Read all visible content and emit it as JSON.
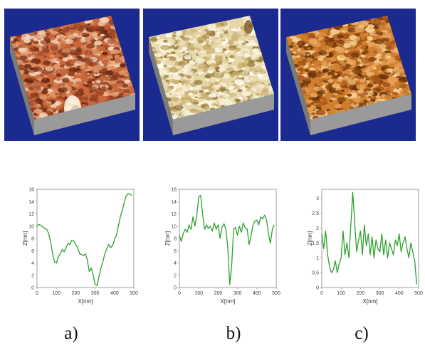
{
  "figure": {
    "panels": [
      {
        "caption": "a)",
        "surface_palette": [
          "#6e2a14",
          "#9b4526",
          "#c8683c",
          "#e29a6a",
          "#f4d7b9"
        ]
      },
      {
        "caption": "b)",
        "surface_palette": [
          "#9a7d3c",
          "#c8ae6e",
          "#e7d7a8",
          "#f6efd4",
          "#fffdf3"
        ]
      },
      {
        "caption": "c)",
        "surface_palette": [
          "#6d3208",
          "#a35419",
          "#d07f2f",
          "#e9a55a",
          "#f8d394"
        ]
      }
    ],
    "background_color": "#1b2a8f",
    "base_color": "#8b8b8b",
    "line_color": "#2ca02c"
  },
  "chart_data": [
    {
      "type": "line",
      "xlabel": "X[nm]",
      "ylabel": "Z[nm]",
      "xlim": [
        0,
        500
      ],
      "ylim": [
        0,
        16
      ],
      "xticks": [
        0,
        100,
        200,
        300,
        400,
        500
      ],
      "yticks": [
        0,
        2,
        4,
        6,
        8,
        10,
        12,
        14,
        16
      ],
      "x": [
        0,
        10,
        20,
        30,
        40,
        50,
        60,
        70,
        80,
        90,
        100,
        110,
        120,
        130,
        140,
        150,
        160,
        170,
        180,
        190,
        200,
        210,
        220,
        230,
        240,
        250,
        260,
        270,
        280,
        290,
        300,
        310,
        320,
        330,
        340,
        350,
        360,
        370,
        380,
        390,
        400,
        410,
        420,
        430,
        440,
        450,
        460,
        470,
        480,
        490
      ],
      "y": [
        10,
        10.3,
        10.1,
        9.9,
        9.6,
        9.5,
        8.8,
        7.5,
        5.6,
        4.2,
        4.0,
        5.0,
        5.5,
        6.2,
        5.8,
        6.5,
        7.2,
        7.0,
        7.7,
        7.6,
        7.0,
        6.5,
        5.5,
        5.4,
        5.2,
        5.5,
        4.5,
        2.6,
        3.2,
        2.0,
        0.5,
        0.3,
        1.8,
        3.2,
        4.2,
        5.5,
        6.3,
        7.0,
        6.5,
        6.8,
        7.8,
        8.5,
        10.0,
        11.5,
        12.5,
        13.8,
        14.9,
        15.3,
        15.2,
        15.0
      ]
    },
    {
      "type": "line",
      "xlabel": "X[nm]",
      "ylabel": "Z[nm]",
      "xlim": [
        0,
        500
      ],
      "ylim": [
        0,
        16
      ],
      "xticks": [
        0,
        100,
        200,
        300,
        400,
        500
      ],
      "yticks": [
        0,
        2,
        4,
        6,
        8,
        10,
        12,
        14,
        16
      ],
      "x": [
        0,
        10,
        20,
        30,
        40,
        50,
        60,
        70,
        80,
        90,
        100,
        110,
        120,
        130,
        140,
        150,
        160,
        170,
        180,
        190,
        200,
        210,
        220,
        230,
        240,
        250,
        260,
        270,
        280,
        290,
        300,
        310,
        320,
        330,
        340,
        350,
        360,
        370,
        380,
        390,
        400,
        410,
        420,
        430,
        440,
        450,
        460,
        470,
        480,
        490
      ],
      "y": [
        8.5,
        7.5,
        8.8,
        9.5,
        9.0,
        10.2,
        9.5,
        11.5,
        10.0,
        11.8,
        14.8,
        15.0,
        12.0,
        9.5,
        10.2,
        9.6,
        10.0,
        9.2,
        10.5,
        9.5,
        10.2,
        8.0,
        9.8,
        10.4,
        9.5,
        6.5,
        0.5,
        3.5,
        9.5,
        9.8,
        8.5,
        10.0,
        9.0,
        10.5,
        9.7,
        9.5,
        7.0,
        8.5,
        10.2,
        10.8,
        11.0,
        10.2,
        11.5,
        11.2,
        11.8,
        11.0,
        8.8,
        7.2,
        9.5,
        10.2
      ]
    },
    {
      "type": "line",
      "xlabel": "X[nm]",
      "ylabel": "Z[nm]",
      "xlim": [
        0,
        500
      ],
      "ylim": [
        0,
        3.3
      ],
      "xticks": [
        0,
        100,
        200,
        300,
        400,
        500
      ],
      "yticks": [
        0,
        0.5,
        1,
        1.5,
        2,
        2.5,
        3
      ],
      "x": [
        0,
        10,
        20,
        30,
        40,
        50,
        60,
        70,
        80,
        90,
        100,
        110,
        120,
        130,
        140,
        150,
        160,
        170,
        180,
        190,
        200,
        210,
        220,
        230,
        240,
        250,
        260,
        270,
        280,
        290,
        300,
        310,
        320,
        330,
        340,
        350,
        360,
        370,
        380,
        390,
        400,
        410,
        420,
        430,
        440,
        450,
        460,
        470,
        480,
        490
      ],
      "y": [
        1.8,
        1.3,
        1.9,
        1.1,
        0.7,
        0.5,
        0.6,
        0.9,
        0.5,
        0.8,
        1.0,
        1.9,
        1.1,
        1.5,
        1.0,
        2.1,
        3.2,
        2.2,
        1.2,
        1.6,
        1.9,
        1.1,
        2.1,
        1.4,
        1.8,
        1.1,
        1.7,
        1.0,
        1.6,
        1.3,
        1.2,
        1.8,
        1.1,
        1.6,
        1.0,
        1.5,
        1.3,
        1.1,
        1.6,
        1.4,
        1.8,
        1.2,
        1.5,
        1.7,
        1.3,
        1.0,
        1.5,
        1.2,
        0.9,
        0.1
      ]
    }
  ]
}
